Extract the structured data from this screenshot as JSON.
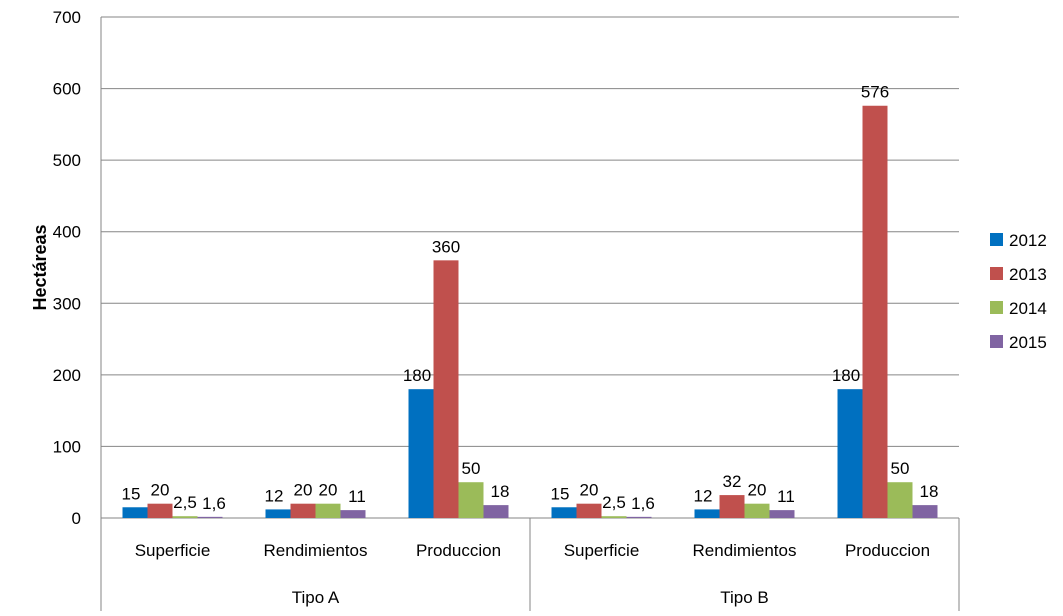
{
  "chart_data": {
    "type": "bar",
    "title": "",
    "xlabel": "",
    "ylabel": "Hectáreas",
    "ylim": [
      0,
      700
    ],
    "yticks": [
      0,
      100,
      200,
      300,
      400,
      500,
      600,
      700
    ],
    "grid": true,
    "legend_position": "right",
    "groups": [
      {
        "label": "Tipo A",
        "categories": [
          "Superficie",
          "Rendimientos",
          "Produccion"
        ]
      },
      {
        "label": "Tipo B",
        "categories": [
          "Superficie",
          "Rendimientos",
          "Produccion"
        ]
      }
    ],
    "series": [
      {
        "name": "2012",
        "color": "#0070C0",
        "values": [
          15,
          12,
          180,
          15,
          12,
          180
        ],
        "labels": [
          "15",
          "12",
          "180",
          "15",
          "12",
          "180"
        ]
      },
      {
        "name": "2013",
        "color": "#C0504D",
        "values": [
          20,
          20,
          360,
          20,
          32,
          576
        ],
        "labels": [
          "20",
          "20",
          "360",
          "20",
          "32",
          "576"
        ]
      },
      {
        "name": "2014",
        "color": "#9BBB59",
        "values": [
          2.5,
          20,
          50,
          2.5,
          20,
          50
        ],
        "labels": [
          "2,5",
          "20",
          "50",
          "2,5",
          "20",
          "50"
        ]
      },
      {
        "name": "2015",
        "color": "#8064A2",
        "values": [
          1.6,
          11,
          18,
          1.6,
          11,
          18
        ],
        "labels": [
          "1,6",
          "11",
          "18",
          "1,6",
          "11",
          "18"
        ]
      }
    ]
  }
}
